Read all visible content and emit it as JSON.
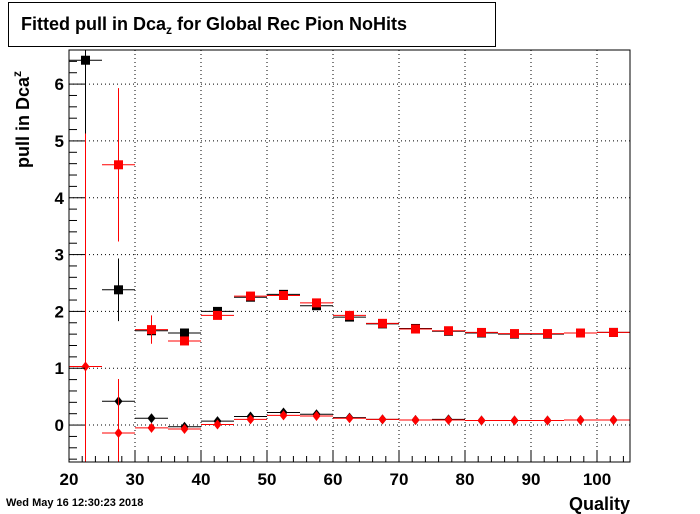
{
  "chart_data": {
    "type": "scatter",
    "title": "Fitted pull in Dca",
    "title_subscript": "z",
    "title_suffix": " for Global Rec Pion NoHits",
    "xlabel": "Quality",
    "ylabel": "pull in Dca",
    "ylabel_subscript": "z",
    "xlim": [
      20,
      105
    ],
    "ylim": [
      -0.65,
      6.6
    ],
    "xticks": [
      20,
      30,
      40,
      50,
      60,
      70,
      80,
      90,
      100
    ],
    "yticks": [
      0,
      1,
      2,
      3,
      4,
      5,
      6
    ],
    "grid": true,
    "series": [
      {
        "marker": "square",
        "color": "#000000",
        "points": [
          {
            "x": 22.5,
            "y": 6.42,
            "xerr": 2.5,
            "yerr_lo": 6.0,
            "yerr_hi": 0.2
          },
          {
            "x": 27.5,
            "y": 2.38,
            "xerr": 2.5,
            "yerr_lo": 0.55,
            "yerr_hi": 0.55
          },
          {
            "x": 32.5,
            "y": 1.66,
            "xerr": 2.5,
            "yerr_lo": 0.12,
            "yerr_hi": 0.12
          },
          {
            "x": 37.5,
            "y": 1.62,
            "xerr": 2.5,
            "yerr_lo": 0.05,
            "yerr_hi": 0.05
          },
          {
            "x": 42.5,
            "y": 2.0,
            "xerr": 2.5,
            "yerr_lo": 0.05,
            "yerr_hi": 0.05
          },
          {
            "x": 47.5,
            "y": 2.25,
            "xerr": 2.5,
            "yerr_lo": 0.04,
            "yerr_hi": 0.04
          },
          {
            "x": 52.5,
            "y": 2.3,
            "xerr": 2.5,
            "yerr_lo": 0.04,
            "yerr_hi": 0.04
          },
          {
            "x": 57.5,
            "y": 2.1,
            "xerr": 2.5,
            "yerr_lo": 0.04,
            "yerr_hi": 0.04
          },
          {
            "x": 62.5,
            "y": 1.9,
            "xerr": 2.5,
            "yerr_lo": 0.03,
            "yerr_hi": 0.03
          },
          {
            "x": 67.5,
            "y": 1.78,
            "xerr": 2.5,
            "yerr_lo": 0.03,
            "yerr_hi": 0.03
          },
          {
            "x": 72.5,
            "y": 1.7,
            "xerr": 2.5,
            "yerr_lo": 0.02,
            "yerr_hi": 0.02
          },
          {
            "x": 77.5,
            "y": 1.65,
            "xerr": 2.5,
            "yerr_lo": 0.02,
            "yerr_hi": 0.02
          },
          {
            "x": 82.5,
            "y": 1.62,
            "xerr": 2.5,
            "yerr_lo": 0.02,
            "yerr_hi": 0.02
          },
          {
            "x": 87.5,
            "y": 1.6,
            "xerr": 2.5,
            "yerr_lo": 0.02,
            "yerr_hi": 0.02
          },
          {
            "x": 92.5,
            "y": 1.6,
            "xerr": 2.5,
            "yerr_lo": 0.02,
            "yerr_hi": 0.02
          },
          {
            "x": 97.5,
            "y": 1.62,
            "xerr": 2.5,
            "yerr_lo": 0.02,
            "yerr_hi": 0.02
          },
          {
            "x": 102.5,
            "y": 1.63,
            "xerr": 2.5,
            "yerr_lo": 0.02,
            "yerr_hi": 0.02
          }
        ]
      },
      {
        "marker": "square",
        "color": "#ff0000",
        "points": [
          {
            "x": 27.5,
            "y": 4.58,
            "xerr": 2.5,
            "yerr_lo": 1.35,
            "yerr_hi": 1.35
          },
          {
            "x": 32.5,
            "y": 1.68,
            "xerr": 2.5,
            "yerr_lo": 0.25,
            "yerr_hi": 0.25
          },
          {
            "x": 37.5,
            "y": 1.48,
            "xerr": 2.5,
            "yerr_lo": 0.06,
            "yerr_hi": 0.06
          },
          {
            "x": 42.5,
            "y": 1.93,
            "xerr": 2.5,
            "yerr_lo": 0.05,
            "yerr_hi": 0.05
          },
          {
            "x": 47.5,
            "y": 2.27,
            "xerr": 2.5,
            "yerr_lo": 0.04,
            "yerr_hi": 0.04
          },
          {
            "x": 52.5,
            "y": 2.28,
            "xerr": 2.5,
            "yerr_lo": 0.04,
            "yerr_hi": 0.04
          },
          {
            "x": 57.5,
            "y": 2.15,
            "xerr": 2.5,
            "yerr_lo": 0.04,
            "yerr_hi": 0.04
          },
          {
            "x": 62.5,
            "y": 1.93,
            "xerr": 2.5,
            "yerr_lo": 0.03,
            "yerr_hi": 0.03
          },
          {
            "x": 67.5,
            "y": 1.79,
            "xerr": 2.5,
            "yerr_lo": 0.03,
            "yerr_hi": 0.03
          },
          {
            "x": 72.5,
            "y": 1.69,
            "xerr": 2.5,
            "yerr_lo": 0.02,
            "yerr_hi": 0.02
          },
          {
            "x": 77.5,
            "y": 1.66,
            "xerr": 2.5,
            "yerr_lo": 0.02,
            "yerr_hi": 0.02
          },
          {
            "x": 82.5,
            "y": 1.63,
            "xerr": 2.5,
            "yerr_lo": 0.02,
            "yerr_hi": 0.02
          },
          {
            "x": 87.5,
            "y": 1.61,
            "xerr": 2.5,
            "yerr_lo": 0.02,
            "yerr_hi": 0.02
          },
          {
            "x": 92.5,
            "y": 1.61,
            "xerr": 2.5,
            "yerr_lo": 0.02,
            "yerr_hi": 0.02
          },
          {
            "x": 97.5,
            "y": 1.62,
            "xerr": 2.5,
            "yerr_lo": 0.02,
            "yerr_hi": 0.02
          },
          {
            "x": 102.5,
            "y": 1.63,
            "xerr": 2.5,
            "yerr_lo": 0.02,
            "yerr_hi": 0.02
          }
        ]
      },
      {
        "marker": "diamond",
        "color": "#000000",
        "points": [
          {
            "x": 27.5,
            "y": 0.42,
            "xerr": 2.5,
            "yerr_lo": 0.3,
            "yerr_hi": 0.3
          },
          {
            "x": 32.5,
            "y": 0.12,
            "xerr": 2.5,
            "yerr_lo": 0.06,
            "yerr_hi": 0.06
          },
          {
            "x": 37.5,
            "y": -0.03,
            "xerr": 2.5,
            "yerr_lo": 0.03,
            "yerr_hi": 0.03
          },
          {
            "x": 42.5,
            "y": 0.07,
            "xerr": 2.5,
            "yerr_lo": 0.02,
            "yerr_hi": 0.02
          },
          {
            "x": 47.5,
            "y": 0.15,
            "xerr": 2.5,
            "yerr_lo": 0.02,
            "yerr_hi": 0.02
          },
          {
            "x": 52.5,
            "y": 0.22,
            "xerr": 2.5,
            "yerr_lo": 0.02,
            "yerr_hi": 0.02
          },
          {
            "x": 57.5,
            "y": 0.19,
            "xerr": 2.5,
            "yerr_lo": 0.02,
            "yerr_hi": 0.02
          },
          {
            "x": 62.5,
            "y": 0.13,
            "xerr": 2.5,
            "yerr_lo": 0.02,
            "yerr_hi": 0.02
          },
          {
            "x": 67.5,
            "y": 0.1,
            "xerr": 2.5,
            "yerr_lo": 0.01,
            "yerr_hi": 0.01
          },
          {
            "x": 72.5,
            "y": 0.09,
            "xerr": 2.5,
            "yerr_lo": 0.01,
            "yerr_hi": 0.01
          },
          {
            "x": 77.5,
            "y": 0.1,
            "xerr": 2.5,
            "yerr_lo": 0.01,
            "yerr_hi": 0.01
          },
          {
            "x": 82.5,
            "y": 0.08,
            "xerr": 2.5,
            "yerr_lo": 0.01,
            "yerr_hi": 0.01
          },
          {
            "x": 87.5,
            "y": 0.08,
            "xerr": 2.5,
            "yerr_lo": 0.01,
            "yerr_hi": 0.01
          },
          {
            "x": 92.5,
            "y": 0.08,
            "xerr": 2.5,
            "yerr_lo": 0.01,
            "yerr_hi": 0.01
          },
          {
            "x": 97.5,
            "y": 0.09,
            "xerr": 2.5,
            "yerr_lo": 0.01,
            "yerr_hi": 0.01
          },
          {
            "x": 102.5,
            "y": 0.09,
            "xerr": 2.5,
            "yerr_lo": 0.01,
            "yerr_hi": 0.01
          }
        ]
      },
      {
        "marker": "diamond",
        "color": "#ff0000",
        "points": [
          {
            "x": 22.5,
            "y": 1.03,
            "xerr": 2.5,
            "yerr_lo": 1.7,
            "yerr_hi": 4.1
          },
          {
            "x": 27.5,
            "y": -0.14,
            "xerr": 2.5,
            "yerr_lo": 0.55,
            "yerr_hi": 0.95
          },
          {
            "x": 32.5,
            "y": -0.05,
            "xerr": 2.5,
            "yerr_lo": 0.08,
            "yerr_hi": 0.08
          },
          {
            "x": 37.5,
            "y": -0.07,
            "xerr": 2.5,
            "yerr_lo": 0.03,
            "yerr_hi": 0.03
          },
          {
            "x": 42.5,
            "y": 0.01,
            "xerr": 2.5,
            "yerr_lo": 0.02,
            "yerr_hi": 0.02
          },
          {
            "x": 47.5,
            "y": 0.1,
            "xerr": 2.5,
            "yerr_lo": 0.02,
            "yerr_hi": 0.02
          },
          {
            "x": 52.5,
            "y": 0.17,
            "xerr": 2.5,
            "yerr_lo": 0.02,
            "yerr_hi": 0.02
          },
          {
            "x": 57.5,
            "y": 0.16,
            "xerr": 2.5,
            "yerr_lo": 0.02,
            "yerr_hi": 0.02
          },
          {
            "x": 62.5,
            "y": 0.12,
            "xerr": 2.5,
            "yerr_lo": 0.02,
            "yerr_hi": 0.02
          },
          {
            "x": 67.5,
            "y": 0.1,
            "xerr": 2.5,
            "yerr_lo": 0.01,
            "yerr_hi": 0.01
          },
          {
            "x": 72.5,
            "y": 0.09,
            "xerr": 2.5,
            "yerr_lo": 0.01,
            "yerr_hi": 0.01
          },
          {
            "x": 77.5,
            "y": 0.09,
            "xerr": 2.5,
            "yerr_lo": 0.01,
            "yerr_hi": 0.01
          },
          {
            "x": 82.5,
            "y": 0.08,
            "xerr": 2.5,
            "yerr_lo": 0.01,
            "yerr_hi": 0.01
          },
          {
            "x": 87.5,
            "y": 0.08,
            "xerr": 2.5,
            "yerr_lo": 0.01,
            "yerr_hi": 0.01
          },
          {
            "x": 92.5,
            "y": 0.08,
            "xerr": 2.5,
            "yerr_lo": 0.01,
            "yerr_hi": 0.01
          },
          {
            "x": 97.5,
            "y": 0.09,
            "xerr": 2.5,
            "yerr_lo": 0.01,
            "yerr_hi": 0.01
          },
          {
            "x": 102.5,
            "y": 0.09,
            "xerr": 2.5,
            "yerr_lo": 0.01,
            "yerr_hi": 0.01
          }
        ]
      }
    ]
  },
  "footer": {
    "datestamp": "Wed May 16 12:30:23 2018"
  }
}
